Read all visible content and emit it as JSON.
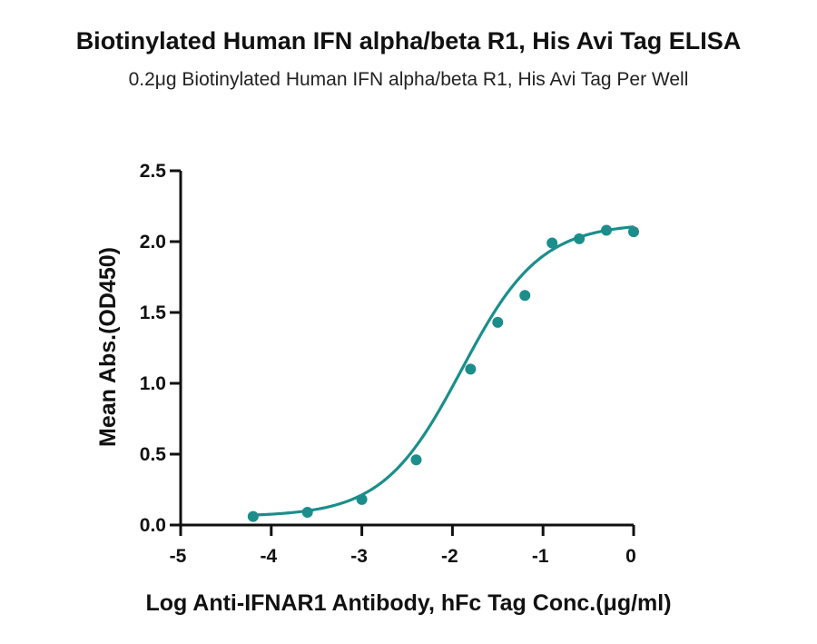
{
  "chart_data": {
    "type": "scatter",
    "title": "Biotinylated Human IFN alpha/beta R1, His Avi Tag ELISA",
    "subtitle": "0.2μg Biotinylated Human IFN alpha/beta R1, His Avi Tag Per Well",
    "xlabel": "Log Anti-IFNAR1 Antibody, hFc Tag Conc.(μg/ml)",
    "ylabel": "Mean Abs.(OD450)",
    "xlim": [
      -5,
      0
    ],
    "ylim": [
      0,
      2.5
    ],
    "x_ticks": [
      "-5",
      "-4",
      "-3",
      "-2",
      "-1",
      "0"
    ],
    "y_ticks": [
      "0.0",
      "0.5",
      "1.0",
      "1.5",
      "2.0",
      "2.5"
    ],
    "grid": false,
    "series": [
      {
        "x": [
          -4.2,
          -3.6,
          -3.0,
          -2.4,
          -1.8,
          -1.5,
          -1.2,
          -0.9,
          -0.6,
          -0.3,
          0.0
        ],
        "y": [
          0.06,
          0.09,
          0.18,
          0.46,
          1.1,
          1.43,
          1.62,
          1.99,
          2.02,
          2.08,
          2.07
        ]
      }
    ],
    "fit_curve": {
      "model": "4PL",
      "bottom": 0.06,
      "top": 2.13,
      "log_ec50": -1.9,
      "hill_slope": 1.0
    },
    "color": "#1b8e8c"
  }
}
